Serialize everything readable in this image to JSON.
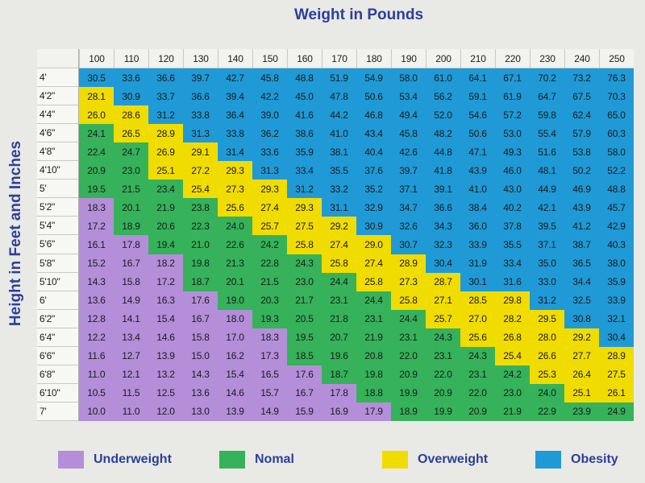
{
  "chart_data": {
    "type": "heatmap",
    "title": "Weight in Pounds",
    "ylabel": "Height in Feet and Inches",
    "x": [
      100,
      110,
      120,
      130,
      140,
      150,
      160,
      170,
      180,
      190,
      200,
      210,
      220,
      230,
      240,
      250
    ],
    "y": [
      "4'",
      "4'2\"",
      "4'4\"",
      "4'6\"",
      "4'8\"",
      "4'10\"",
      "5'",
      "5'2\"",
      "5'4\"",
      "5'6\"",
      "5'8\"",
      "5'10\"",
      "6'",
      "6'2\"",
      "6'4\"",
      "6'6\"",
      "6'8\"",
      "6'10\"",
      "7'"
    ],
    "values": [
      [
        "30.5",
        "33.6",
        "36.6",
        "39.7",
        "42.7",
        "45.8",
        "48.8",
        "51.9",
        "54.9",
        "58.0",
        "61.0",
        "64.1",
        "67.1",
        "70.2",
        "73.2",
        "76.3"
      ],
      [
        "28.1",
        "30.9",
        "33.7",
        "36.6",
        "39.4",
        "42.2",
        "45.0",
        "47.8",
        "50.6",
        "53.4",
        "56.2",
        "59.1",
        "61.9",
        "64.7",
        "67.5",
        "70.3"
      ],
      [
        "26.0",
        "28.6",
        "31.2",
        "33.8",
        "36.4",
        "39.0",
        "41.6",
        "44.2",
        "46.8",
        "49.4",
        "52.0",
        "54.6",
        "57.2",
        "59.8",
        "62.4",
        "65.0"
      ],
      [
        "24.1",
        "26.5",
        "28.9",
        "31.3",
        "33.8",
        "36.2",
        "38.6",
        "41.0",
        "43.4",
        "45.8",
        "48.2",
        "50.6",
        "53.0",
        "55.4",
        "57.9",
        "60.3"
      ],
      [
        "22.4",
        "24.7",
        "26.9",
        "29.1",
        "31.4",
        "33.6",
        "35.9",
        "38.1",
        "40.4",
        "42.6",
        "44.8",
        "47.1",
        "49.3",
        "51.6",
        "53.8",
        "58.0"
      ],
      [
        "20.9",
        "23.0",
        "25.1",
        "27.2",
        "29.3",
        "31.3",
        "33.4",
        "35.5",
        "37.6",
        "39.7",
        "41.8",
        "43.9",
        "46.0",
        "48.1",
        "50.2",
        "52.2"
      ],
      [
        "19.5",
        "21.5",
        "23.4",
        "25.4",
        "27.3",
        "29.3",
        "31.2",
        "33.2",
        "35.2",
        "37.1",
        "39.1",
        "41.0",
        "43.0",
        "44.9",
        "46.9",
        "48.8"
      ],
      [
        "18.3",
        "20.1",
        "21.9",
        "23.8",
        "25.6",
        "27.4",
        "29.3",
        "31.1",
        "32.9",
        "34.7",
        "36.6",
        "38.4",
        "40.2",
        "42.1",
        "43.9",
        "45.7"
      ],
      [
        "17.2",
        "18.9",
        "20.6",
        "22.3",
        "24.0",
        "25.7",
        "27.5",
        "29.2",
        "30.9",
        "32.6",
        "34.3",
        "36.0",
        "37.8",
        "39.5",
        "41.2",
        "42.9"
      ],
      [
        "16.1",
        "17.8",
        "19.4",
        "21.0",
        "22.6",
        "24.2",
        "25.8",
        "27.4",
        "29.0",
        "30.7",
        "32.3",
        "33.9",
        "35.5",
        "37.1",
        "38.7",
        "40.3"
      ],
      [
        "15.2",
        "16.7",
        "18.2",
        "19.8",
        "21.3",
        "22.8",
        "24.3",
        "25.8",
        "27.4",
        "28.9",
        "30.4",
        "31.9",
        "33.4",
        "35.0",
        "36.5",
        "38.0"
      ],
      [
        "14.3",
        "15.8",
        "17.2",
        "18.7",
        "20.1",
        "21.5",
        "23.0",
        "24.4",
        "25.8",
        "27.3",
        "28.7",
        "30.1",
        "31.6",
        "33.0",
        "34.4",
        "35.9"
      ],
      [
        "13.6",
        "14.9",
        "16.3",
        "17.6",
        "19.0",
        "20.3",
        "21.7",
        "23.1",
        "24.4",
        "25.8",
        "27.1",
        "28.5",
        "29.8",
        "31.2",
        "32.5",
        "33.9"
      ],
      [
        "12.8",
        "14.1",
        "15.4",
        "16.7",
        "18.0",
        "19.3",
        "20.5",
        "21.8",
        "23.1",
        "24.4",
        "25.7",
        "27.0",
        "28.2",
        "29.5",
        "30.8",
        "32.1"
      ],
      [
        "12.2",
        "13.4",
        "14.6",
        "15.8",
        "17.0",
        "18.3",
        "19.5",
        "20.7",
        "21.9",
        "23.1",
        "24.3",
        "25.6",
        "26.8",
        "28.0",
        "29.2",
        "30.4"
      ],
      [
        "11.6",
        "12.7",
        "13.9",
        "15.0",
        "16.2",
        "17.3",
        "18.5",
        "19.6",
        "20.8",
        "22.0",
        "23.1",
        "24.3",
        "25.4",
        "26.6",
        "27.7",
        "28.9"
      ],
      [
        "11.0",
        "12.1",
        "13.2",
        "14.3",
        "15.4",
        "16.5",
        "17.6",
        "18.7",
        "19.8",
        "20.9",
        "22.0",
        "23.1",
        "24.2",
        "25.3",
        "26.4",
        "27.5"
      ],
      [
        "10.5",
        "11.5",
        "12.5",
        "13.6",
        "14.6",
        "15.7",
        "16.7",
        "17.8",
        "18.8",
        "19.9",
        "20.9",
        "22.0",
        "23.0",
        "24.0",
        "25.1",
        "26.1"
      ],
      [
        "10.0",
        "11.0",
        "12.0",
        "13.0",
        "13.9",
        "14.9",
        "15.9",
        "16.9",
        "17.9",
        "18.9",
        "19.9",
        "20.9",
        "21.9",
        "22.9",
        "23.9",
        "24.9"
      ]
    ],
    "categories": [
      {
        "label": "Underweight",
        "color": "#b48ed9",
        "range": [
          0,
          18.5
        ]
      },
      {
        "label": "Nomal",
        "color": "#35b25a",
        "range": [
          18.5,
          25
        ]
      },
      {
        "label": "Overweight",
        "color": "#f1dc00",
        "range": [
          25,
          30
        ]
      },
      {
        "label": "Obesity",
        "color": "#1f9ad6",
        "range": [
          30,
          100
        ]
      }
    ],
    "legend_position": "bottom"
  }
}
